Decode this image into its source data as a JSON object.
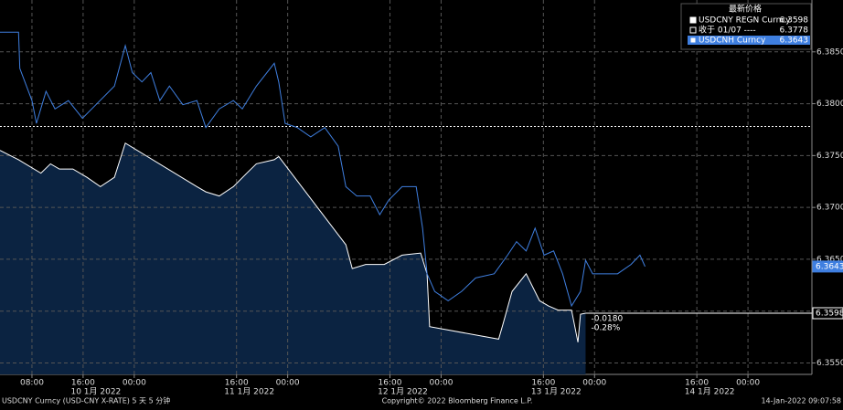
{
  "chart_data": {
    "type": "line",
    "xlim": [
      3,
      130
    ],
    "ylim": [
      6.3539,
      6.39
    ],
    "grid": true,
    "xticks": [
      {
        "value": 8,
        "label": "08:00"
      },
      {
        "value": 16,
        "label": "16:00"
      },
      {
        "value": 24,
        "label": "00:00"
      },
      {
        "value": 40,
        "label": "16:00"
      },
      {
        "value": 48,
        "label": "00:00"
      },
      {
        "value": 64,
        "label": "16:00"
      },
      {
        "value": 72,
        "label": "00:00"
      },
      {
        "value": 88,
        "label": "16:00"
      },
      {
        "value": 96,
        "label": "00:00"
      },
      {
        "value": 112,
        "label": "16:00"
      },
      {
        "value": 120,
        "label": "00:00"
      }
    ],
    "date_labels": [
      {
        "value": 18,
        "label": "10 1月 2022"
      },
      {
        "value": 42,
        "label": "11 1月 2022"
      },
      {
        "value": 66,
        "label": "12 1月 2022"
      },
      {
        "value": 90,
        "label": "13 1月 2022"
      },
      {
        "value": 114,
        "label": "14 1月 2022"
      }
    ],
    "yticks": [
      {
        "value": 6.355,
        "label": "6.3550"
      },
      {
        "value": 6.36,
        "label": "6.3600"
      },
      {
        "value": 6.365,
        "label": "6.3650"
      },
      {
        "value": 6.37,
        "label": "6.3700"
      },
      {
        "value": 6.375,
        "label": "6.3750"
      },
      {
        "value": 6.38,
        "label": "6.3800"
      },
      {
        "value": 6.385,
        "label": "6.3850"
      }
    ],
    "legend_title": "最新价格",
    "series": [
      {
        "name": "USDCNY REGN Curncy",
        "color": "#ffffff",
        "fill": "#0b2341",
        "last": 6.3598,
        "x": [
          3.0,
          5.9,
          9.4,
          10.9,
          12.3,
          14.4,
          16.6,
          18.7,
          20.9,
          22.6,
          33.8,
          35.2,
          37.3,
          39.5,
          41.6,
          43.1,
          45.9,
          46.6,
          57.1,
          58.1,
          60.2,
          63.1,
          65.9,
          68.8,
          69.8,
          70.2,
          81.0,
          81.7,
          83.1,
          85.3,
          87.4,
          88.8,
          90.3,
          92.4,
          93.4,
          93.8,
          94.6
        ],
        "values": [
          6.3755,
          6.3746,
          6.3733,
          6.3742,
          6.3737,
          6.3737,
          6.3729,
          6.372,
          6.3729,
          6.3762,
          6.372,
          6.3715,
          6.3711,
          6.372,
          6.3733,
          6.3742,
          6.3746,
          6.3749,
          6.3664,
          6.3641,
          6.3645,
          6.3645,
          6.3654,
          6.3656,
          6.3636,
          6.3585,
          6.3573,
          6.3588,
          6.3619,
          6.3636,
          6.361,
          6.3605,
          6.3601,
          6.3601,
          6.357,
          6.3597,
          6.3598
        ]
      },
      {
        "name": "USDCNH Curncy",
        "color": "#3f7fe0",
        "last": 6.3643,
        "x": [
          3.0,
          5.9,
          6.1,
          8.0,
          8.7,
          10.2,
          11.6,
          13.7,
          15.9,
          18.0,
          20.9,
          22.6,
          23.7,
          25.2,
          26.6,
          28.0,
          29.5,
          31.6,
          33.8,
          35.2,
          37.3,
          39.5,
          40.9,
          43.1,
          45.9,
          46.6,
          47.6,
          49.5,
          51.6,
          53.8,
          55.9,
          57.1,
          58.8,
          60.9,
          62.4,
          63.8,
          65.9,
          68.1,
          69.1,
          69.8,
          71.0,
          73.1,
          75.2,
          77.4,
          80.3,
          82.4,
          83.8,
          85.3,
          86.7,
          88.1,
          89.6,
          91.0,
          92.4,
          93.8,
          94.6,
          95.7,
          97.4,
          99.6,
          101.7,
          103.1,
          103.9
        ],
        "values": [
          6.3869,
          6.3869,
          6.3834,
          6.3803,
          6.3781,
          6.3812,
          6.3795,
          6.3803,
          6.3786,
          6.3799,
          6.3817,
          6.3856,
          6.383,
          6.3821,
          6.383,
          6.3803,
          6.3817,
          6.3799,
          6.3803,
          6.3777,
          6.3795,
          6.3803,
          6.3795,
          6.3817,
          6.3839,
          6.3821,
          6.3781,
          6.3777,
          6.3768,
          6.3777,
          6.3759,
          6.372,
          6.3711,
          6.3711,
          6.3693,
          6.3707,
          6.372,
          6.372,
          6.368,
          6.3636,
          6.3619,
          6.361,
          6.3619,
          6.3632,
          6.3636,
          6.3654,
          6.3667,
          6.3658,
          6.368,
          6.3654,
          6.3658,
          6.3636,
          6.3605,
          6.3619,
          6.3649,
          6.3636,
          6.3636,
          6.3636,
          6.3645,
          6.3654,
          6.3643
        ]
      }
    ],
    "reference_line": {
      "name": "收于 01/07 ----",
      "value": 6.3778,
      "color": "#ffffff"
    },
    "annotations": [
      {
        "x": 94.6,
        "text": "-0.0180"
      },
      {
        "x": 94.6,
        "text": "-0.28%"
      }
    ]
  },
  "footer": {
    "left": "USDCNY Curncy (USD-CNY X-RATE) 5 天 5 分钟",
    "center": "Copyright© 2022 Bloomberg Finance L.P.",
    "right": "14-Jan-2022 09:07:58"
  }
}
